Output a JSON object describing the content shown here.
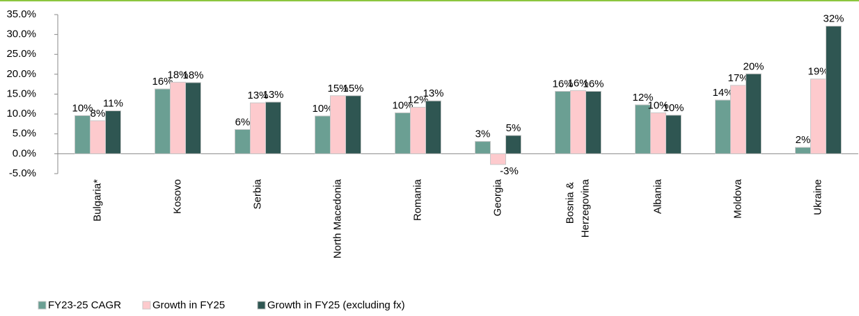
{
  "chart_data": {
    "type": "bar",
    "categories": [
      "Bulgaria*",
      "Kosovo",
      "Serbia",
      "North Macedonia",
      "Romania",
      "Georgia",
      "Bosnia & Herzegovina",
      "Albania",
      "Moldova",
      "Ukraine"
    ],
    "series": [
      {
        "name": "FY23-25 CAGR",
        "color": "#6b9f93",
        "values": [
          9.6,
          16.3,
          6.1,
          9.5,
          10.3,
          3.1,
          15.7,
          12.3,
          13.5,
          1.6
        ],
        "value_labels": [
          "10%",
          "16%",
          "6%",
          "10%",
          "10%",
          "3%",
          "16%",
          "12%",
          "14%",
          "2%"
        ]
      },
      {
        "name": "Growth in FY25",
        "color": "#fdcacd",
        "values": [
          8.3,
          18.0,
          12.8,
          14.6,
          11.7,
          -2.7,
          15.9,
          10.3,
          17.2,
          18.8
        ],
        "value_labels": [
          "8%",
          "18%",
          "13%",
          "15%",
          "12%",
          "-3%",
          "16%",
          "10%",
          "17%",
          "19%"
        ]
      },
      {
        "name": "Growth in FY25 (excluding fx)",
        "color": "#2f5652",
        "values": [
          10.8,
          17.9,
          13.0,
          14.6,
          13.3,
          4.6,
          15.7,
          9.7,
          20.1,
          32.1
        ],
        "value_labels": [
          "11%",
          "18%",
          "13%",
          "15%",
          "13%",
          "5%",
          "16%",
          "10%",
          "20%",
          "32%"
        ]
      }
    ],
    "ylim": [
      -5,
      35
    ],
    "yticks": [
      {
        "value": -5,
        "label": "-5.0%"
      },
      {
        "value": 0,
        "label": "0.0%"
      },
      {
        "value": 5,
        "label": "5.0%"
      },
      {
        "value": 10,
        "label": "10.0%"
      },
      {
        "value": 15,
        "label": "15.0%"
      },
      {
        "value": 20,
        "label": "20.0%"
      },
      {
        "value": 25,
        "label": "25.0%"
      },
      {
        "value": 30,
        "label": "30.0%"
      },
      {
        "value": 35,
        "label": "35.0%"
      }
    ],
    "grid": false
  }
}
